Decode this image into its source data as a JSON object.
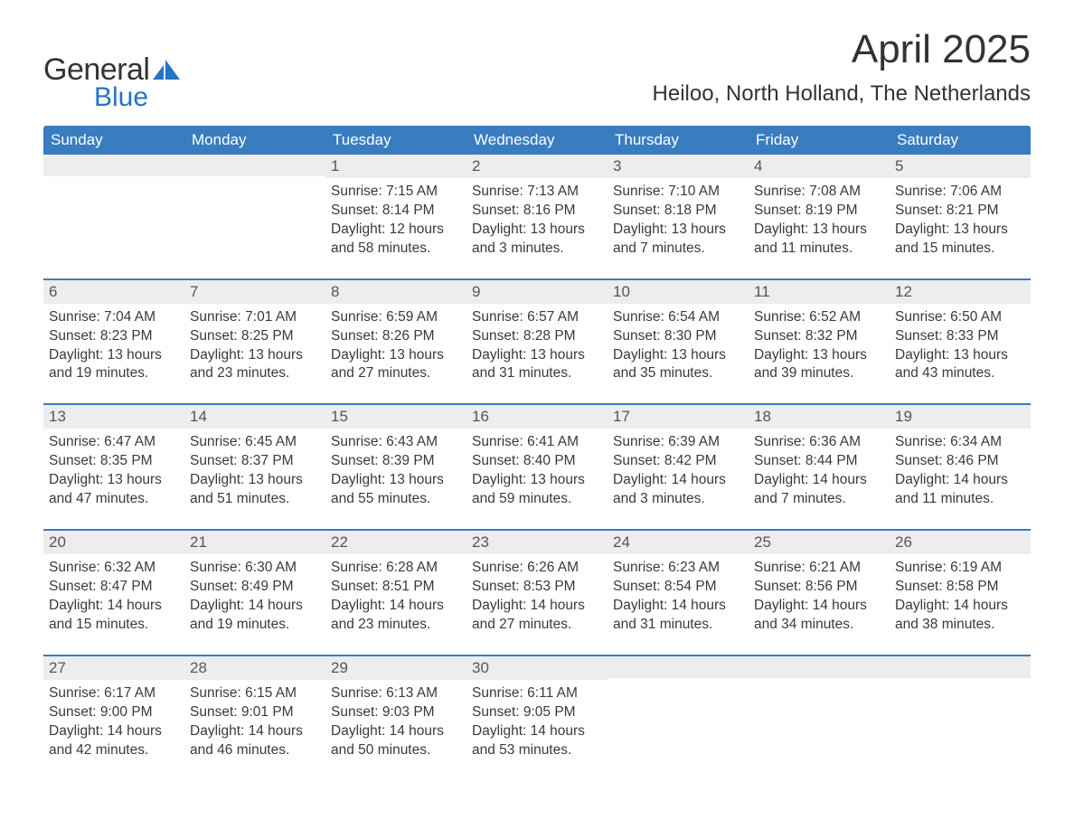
{
  "logo": {
    "text_general": "General",
    "text_blue": "Blue",
    "sail_color": "#2374c6"
  },
  "title": "April 2025",
  "location": "Heiloo, North Holland, The Netherlands",
  "colors": {
    "header_bg": "#3a7cc0",
    "header_text": "#ffffff",
    "strip_bg": "#ededed",
    "text": "#3a3a3a",
    "rule": "#3a7cc0",
    "page_bg": "#ffffff"
  },
  "days_of_week": [
    "Sunday",
    "Monday",
    "Tuesday",
    "Wednesday",
    "Thursday",
    "Friday",
    "Saturday"
  ],
  "cells": [
    {
      "day": "",
      "lines": []
    },
    {
      "day": "",
      "lines": []
    },
    {
      "day": "1",
      "lines": [
        "Sunrise: 7:15 AM",
        "Sunset: 8:14 PM",
        "Daylight: 12 hours and 58 minutes."
      ]
    },
    {
      "day": "2",
      "lines": [
        "Sunrise: 7:13 AM",
        "Sunset: 8:16 PM",
        "Daylight: 13 hours and 3 minutes."
      ]
    },
    {
      "day": "3",
      "lines": [
        "Sunrise: 7:10 AM",
        "Sunset: 8:18 PM",
        "Daylight: 13 hours and 7 minutes."
      ]
    },
    {
      "day": "4",
      "lines": [
        "Sunrise: 7:08 AM",
        "Sunset: 8:19 PM",
        "Daylight: 13 hours and 11 minutes."
      ]
    },
    {
      "day": "5",
      "lines": [
        "Sunrise: 7:06 AM",
        "Sunset: 8:21 PM",
        "Daylight: 13 hours and 15 minutes."
      ]
    },
    {
      "day": "6",
      "lines": [
        "Sunrise: 7:04 AM",
        "Sunset: 8:23 PM",
        "Daylight: 13 hours and 19 minutes."
      ]
    },
    {
      "day": "7",
      "lines": [
        "Sunrise: 7:01 AM",
        "Sunset: 8:25 PM",
        "Daylight: 13 hours and 23 minutes."
      ]
    },
    {
      "day": "8",
      "lines": [
        "Sunrise: 6:59 AM",
        "Sunset: 8:26 PM",
        "Daylight: 13 hours and 27 minutes."
      ]
    },
    {
      "day": "9",
      "lines": [
        "Sunrise: 6:57 AM",
        "Sunset: 8:28 PM",
        "Daylight: 13 hours and 31 minutes."
      ]
    },
    {
      "day": "10",
      "lines": [
        "Sunrise: 6:54 AM",
        "Sunset: 8:30 PM",
        "Daylight: 13 hours and 35 minutes."
      ]
    },
    {
      "day": "11",
      "lines": [
        "Sunrise: 6:52 AM",
        "Sunset: 8:32 PM",
        "Daylight: 13 hours and 39 minutes."
      ]
    },
    {
      "day": "12",
      "lines": [
        "Sunrise: 6:50 AM",
        "Sunset: 8:33 PM",
        "Daylight: 13 hours and 43 minutes."
      ]
    },
    {
      "day": "13",
      "lines": [
        "Sunrise: 6:47 AM",
        "Sunset: 8:35 PM",
        "Daylight: 13 hours and 47 minutes."
      ]
    },
    {
      "day": "14",
      "lines": [
        "Sunrise: 6:45 AM",
        "Sunset: 8:37 PM",
        "Daylight: 13 hours and 51 minutes."
      ]
    },
    {
      "day": "15",
      "lines": [
        "Sunrise: 6:43 AM",
        "Sunset: 8:39 PM",
        "Daylight: 13 hours and 55 minutes."
      ]
    },
    {
      "day": "16",
      "lines": [
        "Sunrise: 6:41 AM",
        "Sunset: 8:40 PM",
        "Daylight: 13 hours and 59 minutes."
      ]
    },
    {
      "day": "17",
      "lines": [
        "Sunrise: 6:39 AM",
        "Sunset: 8:42 PM",
        "Daylight: 14 hours and 3 minutes."
      ]
    },
    {
      "day": "18",
      "lines": [
        "Sunrise: 6:36 AM",
        "Sunset: 8:44 PM",
        "Daylight: 14 hours and 7 minutes."
      ]
    },
    {
      "day": "19",
      "lines": [
        "Sunrise: 6:34 AM",
        "Sunset: 8:46 PM",
        "Daylight: 14 hours and 11 minutes."
      ]
    },
    {
      "day": "20",
      "lines": [
        "Sunrise: 6:32 AM",
        "Sunset: 8:47 PM",
        "Daylight: 14 hours and 15 minutes."
      ]
    },
    {
      "day": "21",
      "lines": [
        "Sunrise: 6:30 AM",
        "Sunset: 8:49 PM",
        "Daylight: 14 hours and 19 minutes."
      ]
    },
    {
      "day": "22",
      "lines": [
        "Sunrise: 6:28 AM",
        "Sunset: 8:51 PM",
        "Daylight: 14 hours and 23 minutes."
      ]
    },
    {
      "day": "23",
      "lines": [
        "Sunrise: 6:26 AM",
        "Sunset: 8:53 PM",
        "Daylight: 14 hours and 27 minutes."
      ]
    },
    {
      "day": "24",
      "lines": [
        "Sunrise: 6:23 AM",
        "Sunset: 8:54 PM",
        "Daylight: 14 hours and 31 minutes."
      ]
    },
    {
      "day": "25",
      "lines": [
        "Sunrise: 6:21 AM",
        "Sunset: 8:56 PM",
        "Daylight: 14 hours and 34 minutes."
      ]
    },
    {
      "day": "26",
      "lines": [
        "Sunrise: 6:19 AM",
        "Sunset: 8:58 PM",
        "Daylight: 14 hours and 38 minutes."
      ]
    },
    {
      "day": "27",
      "lines": [
        "Sunrise: 6:17 AM",
        "Sunset: 9:00 PM",
        "Daylight: 14 hours and 42 minutes."
      ]
    },
    {
      "day": "28",
      "lines": [
        "Sunrise: 6:15 AM",
        "Sunset: 9:01 PM",
        "Daylight: 14 hours and 46 minutes."
      ]
    },
    {
      "day": "29",
      "lines": [
        "Sunrise: 6:13 AM",
        "Sunset: 9:03 PM",
        "Daylight: 14 hours and 50 minutes."
      ]
    },
    {
      "day": "30",
      "lines": [
        "Sunrise: 6:11 AM",
        "Sunset: 9:05 PM",
        "Daylight: 14 hours and 53 minutes."
      ]
    },
    {
      "day": "",
      "lines": []
    },
    {
      "day": "",
      "lines": []
    },
    {
      "day": "",
      "lines": []
    }
  ]
}
